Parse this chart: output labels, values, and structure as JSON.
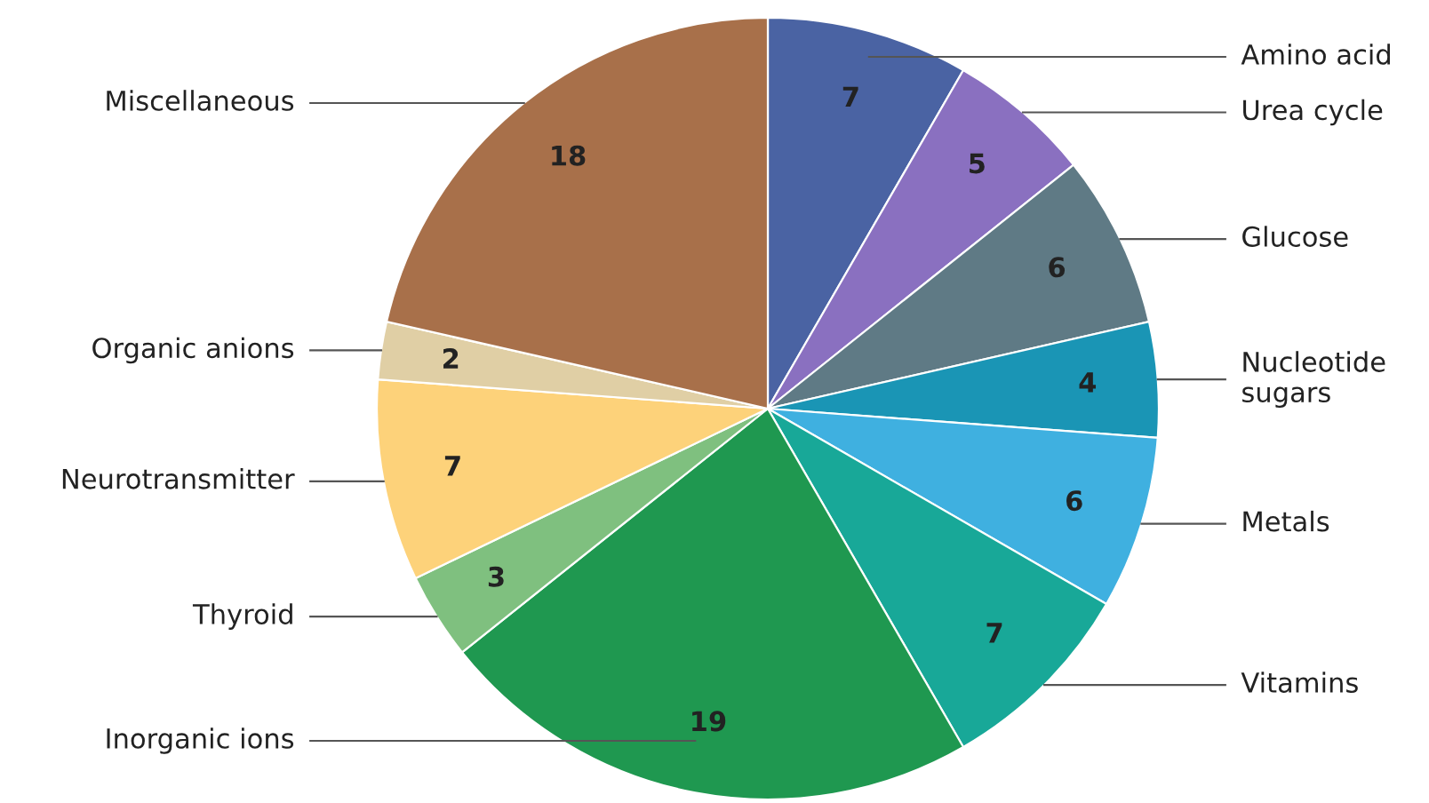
{
  "chart_data": {
    "type": "pie",
    "categories": [
      "Amino acid",
      "Urea cycle",
      "Glucose",
      "Nucleotide\nsugars",
      "Metals",
      "Vitamins",
      "Inorganic ions",
      "Thyroid",
      "Neurotransmitter",
      "Organic anions",
      "Miscellaneous"
    ],
    "values": [
      7,
      5,
      6,
      4,
      6,
      7,
      19,
      3,
      7,
      2,
      18
    ],
    "colors": [
      "#4a63a3",
      "#8a70c0",
      "#5f7a85",
      "#1a95b5",
      "#3fb0e0",
      "#18a898",
      "#1f9850",
      "#7fc07f",
      "#fdd27a",
      "#e0cfa5",
      "#a8704a"
    ],
    "data_labels": true
  }
}
